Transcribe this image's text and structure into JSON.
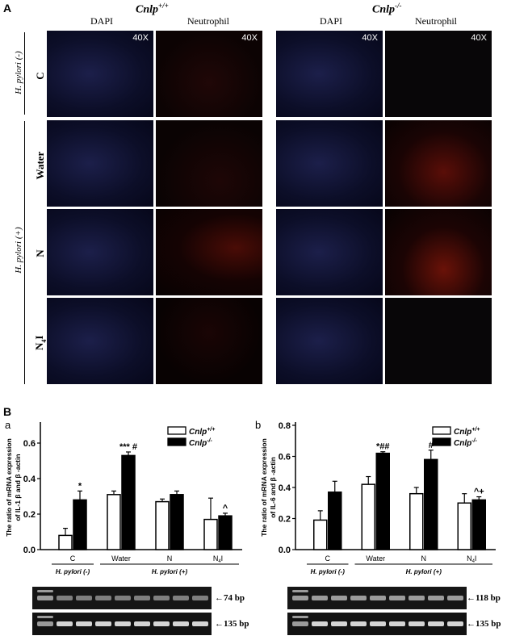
{
  "panelA": {
    "letter": "A",
    "genotype_left": "Cnlp+/+",
    "genotype_right": "Cnlp-/-",
    "col_dapi": "DAPI",
    "col_neutrophil": "Neutrophil",
    "magnification": "40X",
    "group_neg": "H. pylori (-)",
    "group_pos": "H. pylori (+)",
    "rows": [
      "C",
      "Water",
      "N",
      "N4I"
    ]
  },
  "panelB": {
    "letter": "B",
    "sub_a": "a",
    "sub_b": "b"
  },
  "chart_data": [
    {
      "type": "bar",
      "ylabel": "The ratio of mRNA expression of IL-1 β and β -actin",
      "categories": [
        "C",
        "Water",
        "N",
        "N4I"
      ],
      "ylim": [
        0,
        0.7
      ],
      "yticks": [
        "0.0",
        "0.2",
        "0.4",
        "0.6"
      ],
      "series": [
        {
          "name": "Cnlp+/+",
          "values": [
            0.08,
            0.31,
            0.27,
            0.17
          ],
          "errors": [
            0.04,
            0.02,
            0.015,
            0.12
          ],
          "color": "#ffffff"
        },
        {
          "name": "Cnlp-/-",
          "values": [
            0.28,
            0.53,
            0.31,
            0.19
          ],
          "errors": [
            0.05,
            0.02,
            0.02,
            0.015
          ],
          "color": "#000000"
        }
      ],
      "annotations": [
        "*",
        "*** #",
        "",
        "^"
      ],
      "group_neg": "H. pylori  (-)",
      "group_pos": "H. pylori  (+)",
      "gel_bands": [
        "74 bp",
        "135 bp"
      ]
    },
    {
      "type": "bar",
      "ylabel": "The ratio of mRNA expression of IL-6 and β -actin",
      "categories": [
        "C",
        "Water",
        "N",
        "N4I"
      ],
      "ylim": [
        0,
        0.8
      ],
      "yticks": [
        "0.0",
        "0.2",
        "0.4",
        "0.6",
        "0.8"
      ],
      "series": [
        {
          "name": "Cnlp+/+",
          "values": [
            0.19,
            0.42,
            0.36,
            0.3
          ],
          "errors": [
            0.06,
            0.05,
            0.04,
            0.06
          ],
          "color": "#ffffff"
        },
        {
          "name": "Cnlp-/-",
          "values": [
            0.37,
            0.62,
            0.58,
            0.32
          ],
          "errors": [
            0.07,
            0.01,
            0.06,
            0.02
          ],
          "color": "#000000"
        }
      ],
      "annotations": [
        "",
        "*##",
        "#",
        "^+"
      ],
      "group_neg": "H. pylori (-)",
      "group_pos": "H. pylori (+)",
      "gel_bands": [
        "118 bp",
        "135 bp"
      ]
    }
  ]
}
